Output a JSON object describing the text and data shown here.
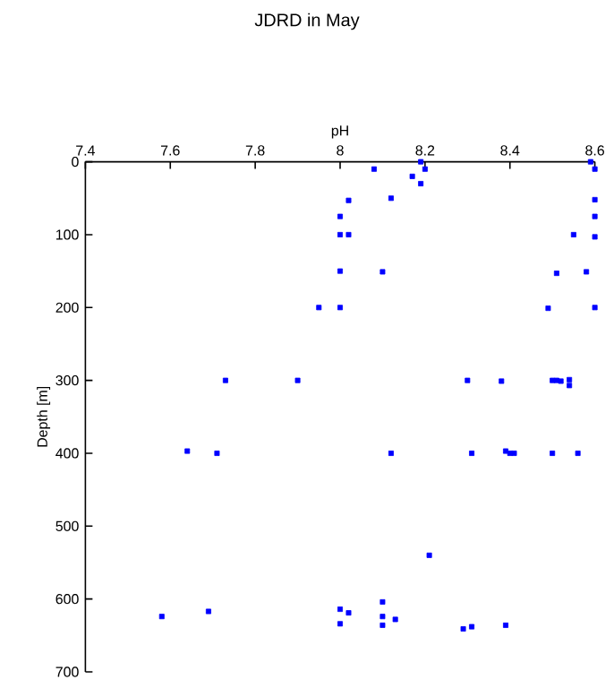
{
  "chart_data": {
    "type": "scatter",
    "title": "JDRD in May",
    "xlabel": "pH",
    "ylabel": "Depth [m]",
    "xlim": [
      7.4,
      8.6
    ],
    "xticks": [
      7.4,
      7.6,
      7.8,
      8,
      8.2,
      8.4,
      8.6
    ],
    "ylim": [
      700,
      0
    ],
    "yticks": [
      0,
      100,
      200,
      300,
      400,
      500,
      600,
      700
    ],
    "marker": "square",
    "series": [
      {
        "color": "#0000ff",
        "x": [
          8.19,
          8.59,
          8.08,
          8.2,
          8.6,
          8.17,
          8.19,
          8.02,
          8.12,
          8.6,
          8.0,
          8.6,
          8.0,
          8.02,
          8.55,
          8.6,
          8.0,
          8.1,
          8.51,
          8.58,
          7.95,
          8.0,
          8.49,
          8.6,
          7.73,
          7.9,
          8.3,
          8.38,
          8.5,
          8.51,
          8.52,
          8.54,
          8.54,
          7.64,
          7.71,
          8.12,
          8.31,
          8.39,
          8.4,
          8.41,
          8.5,
          8.56,
          8.21,
          7.58,
          7.69,
          8.0,
          8.02,
          8.0,
          8.1,
          8.1,
          8.1,
          8.13,
          8.29,
          8.31,
          8.39
        ],
        "values": [
          0,
          0,
          10,
          10,
          10,
          20,
          30,
          53,
          50,
          52,
          75,
          75,
          100,
          100,
          100,
          103,
          150,
          151,
          153,
          151,
          200,
          200,
          201,
          200,
          300,
          300,
          300,
          301,
          300,
          300,
          301,
          299,
          307,
          397,
          400,
          400,
          400,
          397,
          400,
          400,
          400,
          400,
          540,
          624,
          617,
          614,
          619,
          634,
          604,
          624,
          636,
          628,
          641,
          638,
          636
        ]
      }
    ]
  }
}
